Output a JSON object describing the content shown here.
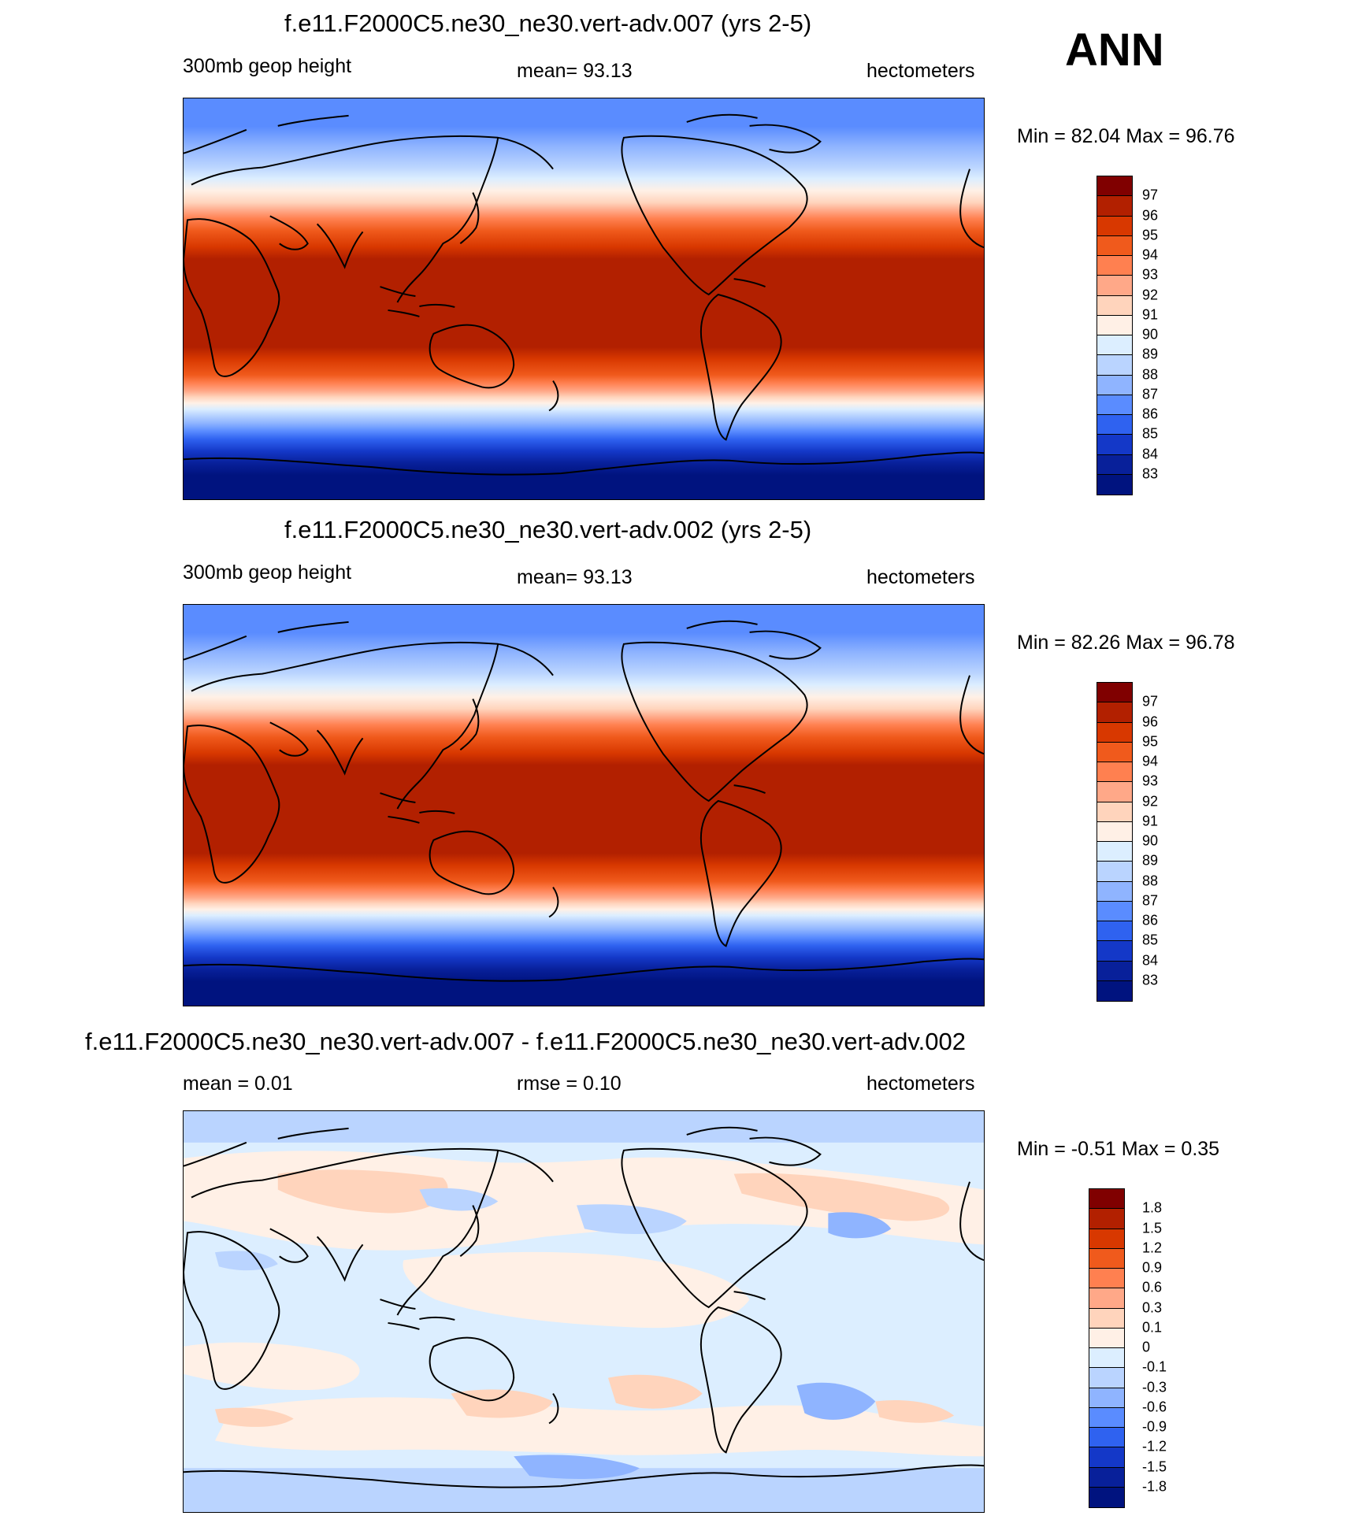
{
  "season": "ANN",
  "panels": [
    {
      "id": "panel1",
      "title": "f.e11.F2000C5.ne30_ne30.vert-adv.007 (yrs 2-5)",
      "left_label": "300mb geop height",
      "center_label": "mean=  93.13",
      "right_label": "hectometers",
      "minmax": "Min =  82.04 Max =  96.76",
      "colorbar": {
        "labels": [
          "97",
          "96",
          "95",
          "94",
          "93",
          "92",
          "91",
          "90",
          "89",
          "88",
          "87",
          "86",
          "85",
          "84",
          "83"
        ],
        "colors": [
          "#800000",
          "#B22000",
          "#D83800",
          "#F05A1C",
          "#FF8050",
          "#FFA888",
          "#FFD4BC",
          "#FFF0E6",
          "#DCEEFF",
          "#BAD4FF",
          "#8FB4FF",
          "#5A8CFF",
          "#2F62F0",
          "#1438C8",
          "#08209A",
          "#00137F"
        ]
      }
    },
    {
      "id": "panel2",
      "title": "f.e11.F2000C5.ne30_ne30.vert-adv.002 (yrs 2-5)",
      "left_label": "300mb geop height",
      "center_label": "mean=  93.13",
      "right_label": "hectometers",
      "minmax": "Min =  82.26 Max =  96.78",
      "colorbar": {
        "labels": [
          "97",
          "96",
          "95",
          "94",
          "93",
          "92",
          "91",
          "90",
          "89",
          "88",
          "87",
          "86",
          "85",
          "84",
          "83"
        ],
        "colors": [
          "#800000",
          "#B22000",
          "#D83800",
          "#F05A1C",
          "#FF8050",
          "#FFA888",
          "#FFD4BC",
          "#FFF0E6",
          "#DCEEFF",
          "#BAD4FF",
          "#8FB4FF",
          "#5A8CFF",
          "#2F62F0",
          "#1438C8",
          "#08209A",
          "#00137F"
        ]
      }
    },
    {
      "id": "panel3",
      "title": "f.e11.F2000C5.ne30_ne30.vert-adv.007 - f.e11.F2000C5.ne30_ne30.vert-adv.002",
      "left_label": "mean =   0.01",
      "center_label": "rmse =   0.10",
      "right_label": "hectometers",
      "minmax": "Min =  -0.51 Max =   0.35",
      "colorbar": {
        "labels": [
          "1.8",
          "1.5",
          "1.2",
          "0.9",
          "0.6",
          "0.3",
          "0.1",
          "0",
          "-0.1",
          "-0.3",
          "-0.6",
          "-0.9",
          "-1.2",
          "-1.5",
          "-1.8"
        ],
        "colors": [
          "#800000",
          "#B22000",
          "#D83800",
          "#F05A1C",
          "#FF8050",
          "#FFA888",
          "#FFD4BC",
          "#FFF0E6",
          "#DCEEFF",
          "#BAD4FF",
          "#8FB4FF",
          "#5A8CFF",
          "#2F62F0",
          "#1438C8",
          "#08209A",
          "#00137F"
        ]
      }
    }
  ]
}
